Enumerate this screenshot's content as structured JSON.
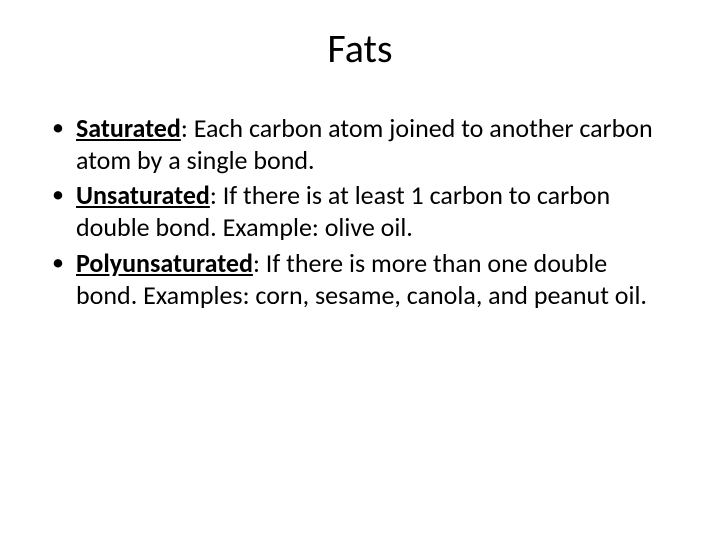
{
  "title": "Fats",
  "bullets": [
    {
      "term": "Saturated",
      "text": ":  Each carbon atom joined to another carbon atom by a single bond."
    },
    {
      "term": "Unsaturated",
      "text": ":  If there is at least 1 carbon to carbon double bond.  Example: olive oil."
    },
    {
      "term": "Polyunsaturated",
      "text": ":  If there is more than one double bond.  Examples: corn, sesame, canola, and peanut oil."
    }
  ],
  "style": {
    "background_color": "#ffffff",
    "text_color": "#000000",
    "title_fontsize": 40,
    "body_fontsize": 26,
    "font_family": "Calibri"
  }
}
